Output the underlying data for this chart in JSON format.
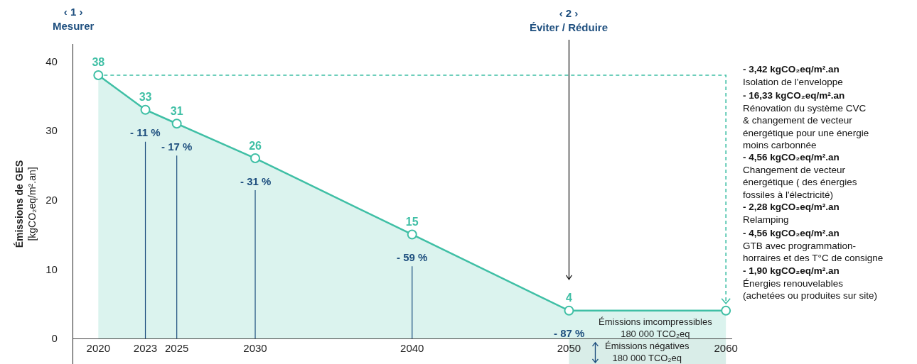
{
  "chart_data": {
    "type": "area",
    "x": [
      2020,
      2023,
      2025,
      2030,
      2040,
      2050,
      2060
    ],
    "series": [
      {
        "color": "#3fbfa5",
        "values": [
          38,
          33,
          31,
          26,
          15,
          4,
          4
        ],
        "value_labels": [
          "38",
          "33",
          "31",
          "26",
          "15",
          "4",
          null
        ]
      }
    ],
    "xlim": [
      2018.4,
      2060.4
    ],
    "xticks": [
      2020,
      2023,
      2025,
      2030,
      2040,
      2050,
      2060
    ],
    "ylim": [
      -3.7,
      42.5
    ],
    "yticks": [
      0,
      10,
      20,
      30,
      40
    ],
    "ylabel": "Émissions de GES\n[kgCO₂eq/m².an]",
    "marker": "circle",
    "line_style": "solid",
    "bands": [
      {
        "axis": "x",
        "from": 2050,
        "to": 2060,
        "label": "Émissions négatives\n180 000 TCO₂eq",
        "color": "#d9ede8"
      }
    ],
    "annotations": [
      "‹ 1 ›\nMesurer",
      "‹ 2 ›\nÉviter / Réduire",
      {
        "text": "- 11 %",
        "x": 2023,
        "y": 33
      },
      {
        "text": "- 17 %",
        "x": 2025,
        "y": 31
      },
      {
        "text": "- 31 %",
        "x": 2030,
        "y": 26
      },
      {
        "text": "- 59 %",
        "x": 2040,
        "y": 15
      },
      {
        "text": "- 87 %",
        "x": 2050,
        "y": 4
      },
      "Émissions imcompressibles\n180 000 TCO₂eq",
      "- 3,42 kgCO₂eq/m².an\nIsolation de l'enveloppe",
      "- 16,33 kgCO₂eq/m².an\nRénovation du système CVC\n& changement de vecteur\nénergétique pour une énergie\nmoins carbonnée",
      "- 4,56 kgCO₂eq/m².an\nChangement de vecteur\nénergétique ( des énergies\nfossiles à l'électricité)",
      "- 2,28 kgCO₂eq/m².an\nRelamping",
      "- 4,56 kgCO₂eq/m².an\nGTB avec programmation-\nhorraires et des T°C de consigne",
      "- 1,90 kgCO₂eq/m².an\nÉnergies renouvelables\n(achetées ou produites sur site)"
    ]
  }
}
